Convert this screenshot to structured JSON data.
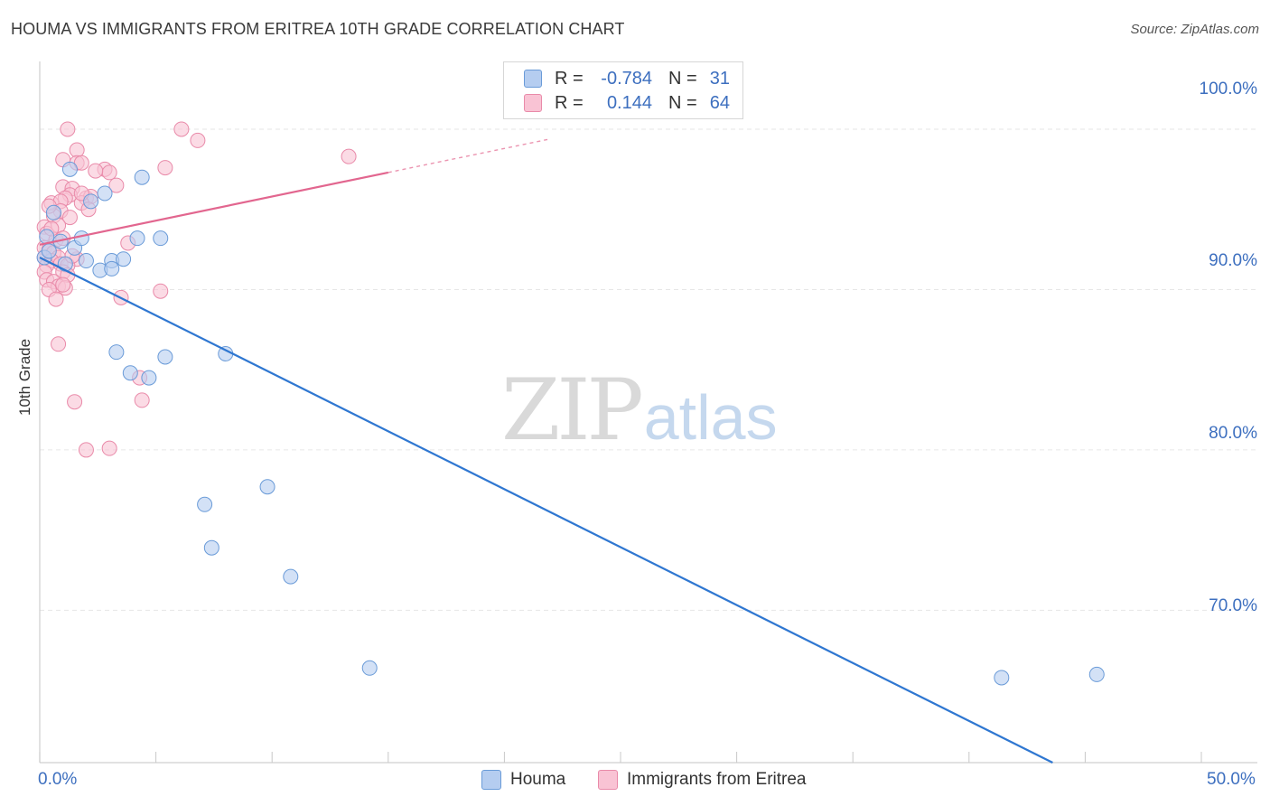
{
  "header": {
    "title": "HOUMA VS IMMIGRANTS FROM ERITREA 10TH GRADE CORRELATION CHART",
    "source": "Source: ZipAtlas.com"
  },
  "legend": {
    "houma": {
      "r_label": "R =",
      "r_value": "-0.784",
      "n_label": "N =",
      "n_value": "31"
    },
    "eritrea": {
      "r_label": "R =",
      "r_value": "0.144",
      "n_label": "N =",
      "n_value": "64"
    }
  },
  "watermark": {
    "zip": "ZIP",
    "atlas": "atlas"
  },
  "colors": {
    "houma_fill": "#b5cdf0",
    "houma_stroke": "#6a9bd8",
    "houma_line": "#2f77d1",
    "eritrea_fill": "#f9c3d4",
    "eritrea_stroke": "#e98aa9",
    "eritrea_line": "#e2668f",
    "tick_text": "#3d6fbf",
    "grid": "#e6e6e6"
  },
  "chart_data": {
    "type": "scatter",
    "title": "HOUMA VS IMMIGRANTS FROM ERITREA 10TH GRADE CORRELATION CHART",
    "xlabel": "",
    "ylabel": "10th Grade",
    "xlim": [
      0,
      50
    ],
    "ylim": [
      60.5,
      104
    ],
    "x_tick_labels": [
      "0.0%",
      "50.0%"
    ],
    "y_ticks": [
      70,
      80,
      90,
      100
    ],
    "y_tick_labels": [
      "70.0%",
      "80.0%",
      "90.0%",
      "100.0%"
    ],
    "grid": true,
    "legend_position": "top-center",
    "series": [
      {
        "name": "Houma",
        "R": -0.784,
        "N": 31,
        "trend": {
          "x": [
            0,
            43.6
          ],
          "y": [
            92.0,
            60.5
          ]
        },
        "points": [
          {
            "x": 1.3,
            "y": 97.5
          },
          {
            "x": 2.8,
            "y": 96.0
          },
          {
            "x": 4.4,
            "y": 97.0
          },
          {
            "x": 2.2,
            "y": 95.5
          },
          {
            "x": 0.6,
            "y": 94.8
          },
          {
            "x": 0.3,
            "y": 93.3
          },
          {
            "x": 0.9,
            "y": 93.0
          },
          {
            "x": 1.5,
            "y": 92.6
          },
          {
            "x": 1.8,
            "y": 93.2
          },
          {
            "x": 4.2,
            "y": 93.2
          },
          {
            "x": 5.2,
            "y": 93.2
          },
          {
            "x": 0.2,
            "y": 92.0
          },
          {
            "x": 2.0,
            "y": 91.8
          },
          {
            "x": 3.1,
            "y": 91.8
          },
          {
            "x": 3.6,
            "y": 91.9
          },
          {
            "x": 1.1,
            "y": 91.6
          },
          {
            "x": 2.6,
            "y": 91.2
          },
          {
            "x": 3.1,
            "y": 91.3
          },
          {
            "x": 3.3,
            "y": 86.1
          },
          {
            "x": 5.4,
            "y": 85.8
          },
          {
            "x": 8.0,
            "y": 86.0
          },
          {
            "x": 3.9,
            "y": 84.8
          },
          {
            "x": 4.7,
            "y": 84.5
          },
          {
            "x": 7.1,
            "y": 76.6
          },
          {
            "x": 9.8,
            "y": 77.7
          },
          {
            "x": 7.4,
            "y": 73.9
          },
          {
            "x": 10.8,
            "y": 72.1
          },
          {
            "x": 14.2,
            "y": 66.4
          },
          {
            "x": 41.4,
            "y": 65.8
          },
          {
            "x": 45.5,
            "y": 66.0
          },
          {
            "x": 0.4,
            "y": 92.4
          }
        ]
      },
      {
        "name": "Immigrants from Eritrea",
        "R": 0.144,
        "N": 64,
        "trend": {
          "x": [
            0,
            15
          ],
          "y": [
            92.8,
            97.3
          ]
        },
        "trend_dashed": {
          "x": [
            15,
            22
          ],
          "y": [
            97.3,
            99.4
          ]
        },
        "points": [
          {
            "x": 1.2,
            "y": 100.0
          },
          {
            "x": 6.1,
            "y": 100.0
          },
          {
            "x": 6.8,
            "y": 99.3
          },
          {
            "x": 1.6,
            "y": 98.7
          },
          {
            "x": 1.0,
            "y": 98.1
          },
          {
            "x": 1.6,
            "y": 97.9
          },
          {
            "x": 1.8,
            "y": 97.9
          },
          {
            "x": 13.3,
            "y": 98.3
          },
          {
            "x": 5.4,
            "y": 97.6
          },
          {
            "x": 2.8,
            "y": 97.5
          },
          {
            "x": 3.0,
            "y": 97.3
          },
          {
            "x": 2.4,
            "y": 97.4
          },
          {
            "x": 3.3,
            "y": 96.5
          },
          {
            "x": 1.0,
            "y": 96.4
          },
          {
            "x": 1.4,
            "y": 96.3
          },
          {
            "x": 1.3,
            "y": 95.9
          },
          {
            "x": 1.1,
            "y": 95.7
          },
          {
            "x": 2.0,
            "y": 95.7
          },
          {
            "x": 2.2,
            "y": 95.8
          },
          {
            "x": 0.5,
            "y": 95.4
          },
          {
            "x": 0.9,
            "y": 95.5
          },
          {
            "x": 1.8,
            "y": 95.4
          },
          {
            "x": 2.1,
            "y": 95.0
          },
          {
            "x": 0.9,
            "y": 94.9
          },
          {
            "x": 0.6,
            "y": 94.6
          },
          {
            "x": 1.3,
            "y": 94.5
          },
          {
            "x": 0.2,
            "y": 93.9
          },
          {
            "x": 0.8,
            "y": 94.0
          },
          {
            "x": 0.3,
            "y": 93.5
          },
          {
            "x": 0.7,
            "y": 93.1
          },
          {
            "x": 1.0,
            "y": 93.2
          },
          {
            "x": 3.8,
            "y": 92.9
          },
          {
            "x": 0.2,
            "y": 92.6
          },
          {
            "x": 0.4,
            "y": 92.5
          },
          {
            "x": 0.6,
            "y": 92.3
          },
          {
            "x": 0.8,
            "y": 92.0
          },
          {
            "x": 0.2,
            "y": 92.0
          },
          {
            "x": 0.5,
            "y": 91.8
          },
          {
            "x": 1.6,
            "y": 91.9
          },
          {
            "x": 0.3,
            "y": 91.5
          },
          {
            "x": 0.9,
            "y": 91.6
          },
          {
            "x": 1.2,
            "y": 91.5
          },
          {
            "x": 0.2,
            "y": 91.1
          },
          {
            "x": 1.0,
            "y": 91.1
          },
          {
            "x": 1.2,
            "y": 90.9
          },
          {
            "x": 0.3,
            "y": 90.6
          },
          {
            "x": 0.6,
            "y": 90.5
          },
          {
            "x": 0.8,
            "y": 90.2
          },
          {
            "x": 1.1,
            "y": 90.1
          },
          {
            "x": 1.0,
            "y": 90.3
          },
          {
            "x": 0.4,
            "y": 90.0
          },
          {
            "x": 5.2,
            "y": 89.9
          },
          {
            "x": 3.5,
            "y": 89.5
          },
          {
            "x": 0.7,
            "y": 89.4
          },
          {
            "x": 0.8,
            "y": 86.6
          },
          {
            "x": 4.3,
            "y": 84.5
          },
          {
            "x": 1.5,
            "y": 83.0
          },
          {
            "x": 4.4,
            "y": 83.1
          },
          {
            "x": 2.0,
            "y": 80.0
          },
          {
            "x": 3.0,
            "y": 80.1
          },
          {
            "x": 0.4,
            "y": 95.2
          },
          {
            "x": 1.4,
            "y": 92.1
          },
          {
            "x": 0.5,
            "y": 93.8
          },
          {
            "x": 1.8,
            "y": 96.0
          }
        ]
      }
    ]
  }
}
